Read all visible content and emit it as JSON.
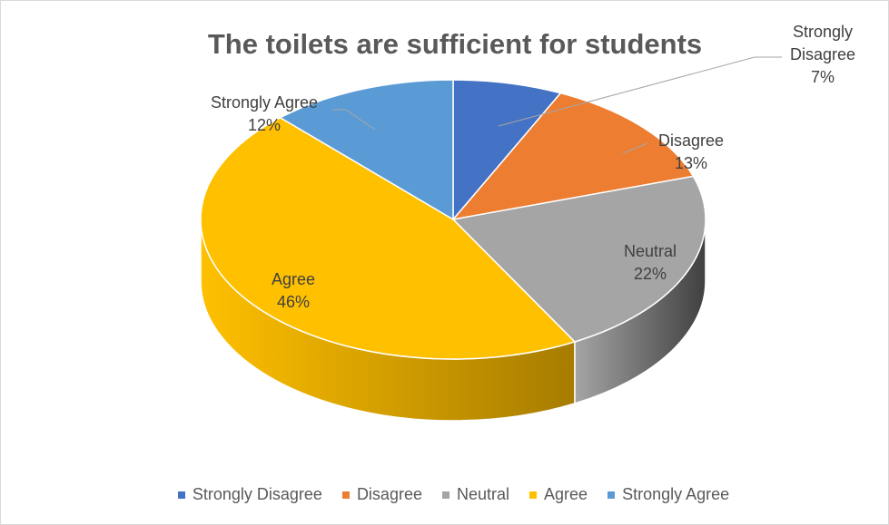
{
  "chart_data": {
    "type": "pie",
    "title": "The toilets are sufficient for students",
    "categories": [
      "Strongly Disagree",
      "Disagree",
      "Neutral",
      "Agree",
      "Strongly Agree"
    ],
    "values": [
      7,
      13,
      22,
      46,
      12
    ],
    "value_suffix": "%",
    "colors": [
      "#4472c4",
      "#ed7d31",
      "#a5a5a5",
      "#ffc000",
      "#5b9bd5"
    ],
    "side_colors": [
      "#2f5597",
      "#ae5a21",
      "#404040",
      "#a67c00",
      "#3a74a8"
    ],
    "style": "3d-pie",
    "legend": "bottom"
  }
}
